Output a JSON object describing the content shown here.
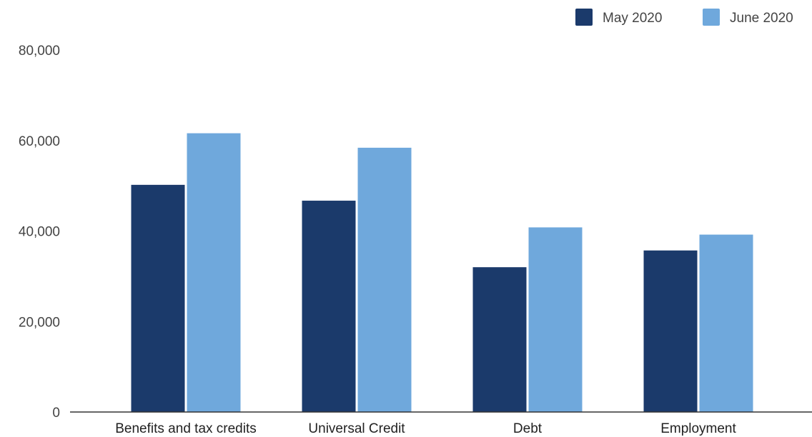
{
  "chart_data": {
    "type": "bar",
    "title": "",
    "xlabel": "",
    "ylabel": "",
    "categories": [
      "Benefits and tax credits",
      "Universal Credit",
      "Debt",
      "Employment"
    ],
    "series": [
      {
        "name": "May 2020",
        "color": "#1b3a6b",
        "values": [
          50200,
          46700,
          32000,
          35700
        ]
      },
      {
        "name": "June 2020",
        "color": "#6fa8dc",
        "values": [
          61600,
          58400,
          40800,
          39200
        ]
      }
    ],
    "ylim": [
      0,
      80000
    ],
    "yticks": [
      0,
      20000,
      40000,
      60000,
      80000
    ],
    "ytick_labels": [
      "0",
      "20,000",
      "40,000",
      "60,000",
      "80,000"
    ],
    "grid": false,
    "legend_position": "top-right"
  }
}
